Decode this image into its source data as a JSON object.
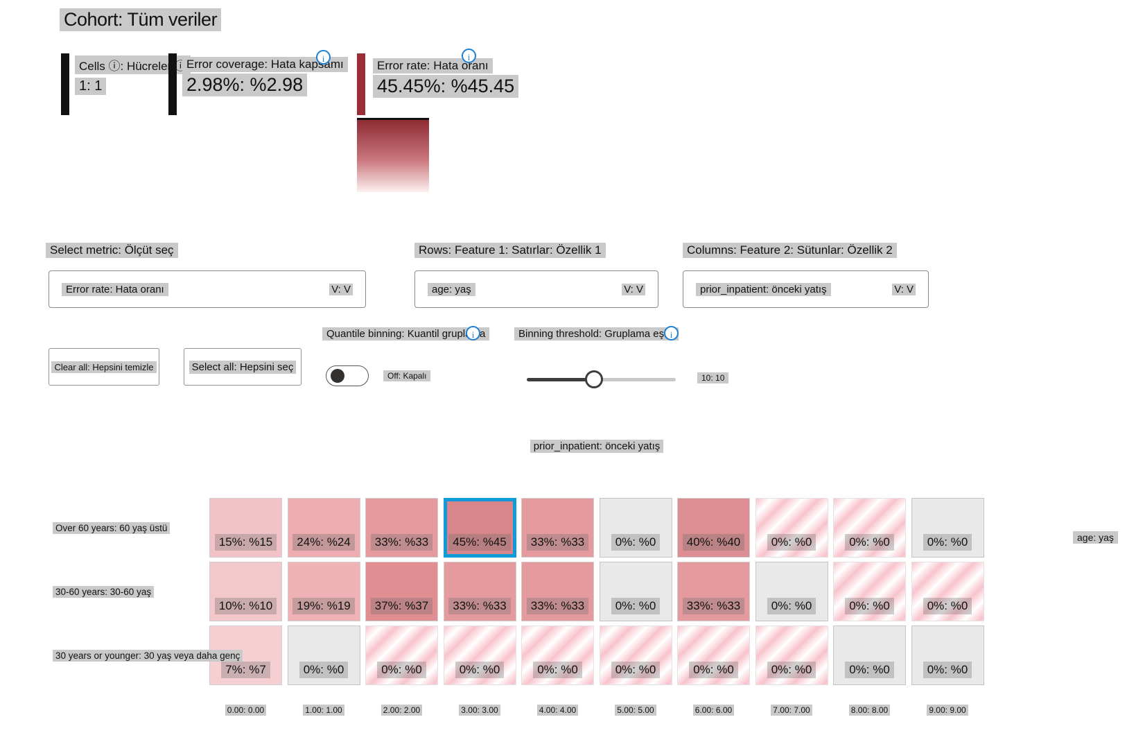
{
  "title": "Cohort: Tüm veriler",
  "stats": {
    "cells": {
      "label": "Cells ⓘ: Hücreler ⓘ",
      "value": "1: 1"
    },
    "error_coverage": {
      "label": "Error coverage: Hata kapsamı",
      "value": "2.98%: %2.98"
    },
    "error_rate": {
      "label": "Error rate: Hata oranı",
      "value": "45.45%: %45.45"
    }
  },
  "controls": {
    "metric_label": "Select metric: Ölçüt seç",
    "metric_value": "Error rate: Hata oranı",
    "rows_label": "Rows: Feature 1: Satırlar: Özellik 1",
    "rows_value": "age: yaş",
    "columns_label": "Columns: Feature 2: Sütunlar: Özellik 2",
    "columns_value": "prior_inpatient: önceki yatış",
    "dropdown_chevron": "V: V",
    "clear_all": "Clear all: Hepsini temizle",
    "select_all": "Select all: Hepsini seç",
    "quantile_label": "Quantile binning: Kuantil gruplama",
    "quantile_state": "Off: Kapalı",
    "threshold_label": "Binning threshold: Gruplama eşiği",
    "threshold_value": "10: 10",
    "threshold_percent": 45,
    "info_glyph": "i"
  },
  "colors": {
    "info_blue": "#1b7fd6",
    "selection_blue": "#0f9bd7",
    "error_red": "#9a2d36",
    "highlight_gray": "#c9c9c9",
    "legend_top": "#8e2b33",
    "legend_bottom": "#fdf0f0"
  },
  "chart_data": {
    "type": "heatmap",
    "title": "prior_inpatient: önceki yatış",
    "row_axis_label": "age: yaş",
    "columns": [
      "0.00: 0.00",
      "1.00: 1.00",
      "2.00: 2.00",
      "3.00: 3.00",
      "4.00: 4.00",
      "5.00: 5.00",
      "6.00: 6.00",
      "7.00: 7.00",
      "8.00: 8.00",
      "9.00: 9.00"
    ],
    "rows": [
      "Over 60 years: 60 yaş üstü",
      "30-60 years: 30-60 yaş",
      "30 years or younger: 30 yaş veya daha genç"
    ],
    "selected": {
      "row": 0,
      "col": 3
    },
    "legend": {
      "metric": "Error rate: Hata oranı",
      "max_label": "45.45%: %45.45"
    },
    "cells": [
      [
        {
          "label": "15%: %15",
          "value": 15,
          "fill": "#f2c3c6"
        },
        {
          "label": "24%: %24",
          "value": 24,
          "fill": "#ecacb0"
        },
        {
          "label": "33%: %33",
          "value": 33,
          "fill": "#e59a9e"
        },
        {
          "label": "45%: %45",
          "value": 45,
          "fill": "#d9868b"
        },
        {
          "label": "33%: %33",
          "value": 33,
          "fill": "#e59a9e"
        },
        {
          "label": "0%: %0",
          "value": 0,
          "fill": "gray"
        },
        {
          "label": "40%: %40",
          "value": 40,
          "fill": "#dd8e92"
        },
        {
          "label": "0%: %0",
          "value": 0,
          "fill": "striped"
        },
        {
          "label": "0%: %0",
          "value": 0,
          "fill": "striped"
        },
        {
          "label": "0%: %0",
          "value": 0,
          "fill": "gray"
        }
      ],
      [
        {
          "label": "10%: %10",
          "value": 10,
          "fill": "#f3c8cb"
        },
        {
          "label": "19%: %19",
          "value": 19,
          "fill": "#efb3b6"
        },
        {
          "label": "37%: %37",
          "value": 37,
          "fill": "#e08e92"
        },
        {
          "label": "33%: %33",
          "value": 33,
          "fill": "#e59a9e"
        },
        {
          "label": "33%: %33",
          "value": 33,
          "fill": "#e59a9e"
        },
        {
          "label": "0%: %0",
          "value": 0,
          "fill": "gray"
        },
        {
          "label": "33%: %33",
          "value": 33,
          "fill": "#e59a9e"
        },
        {
          "label": "0%: %0",
          "value": 0,
          "fill": "gray"
        },
        {
          "label": "0%: %0",
          "value": 0,
          "fill": "striped"
        },
        {
          "label": "0%: %0",
          "value": 0,
          "fill": "striped"
        }
      ],
      [
        {
          "label": "7%: %7",
          "value": 7,
          "fill": "#f5cfd2"
        },
        {
          "label": "0%: %0",
          "value": 0,
          "fill": "gray"
        },
        {
          "label": "0%: %0",
          "value": 0,
          "fill": "striped"
        },
        {
          "label": "0%: %0",
          "value": 0,
          "fill": "striped"
        },
        {
          "label": "0%: %0",
          "value": 0,
          "fill": "striped"
        },
        {
          "label": "0%: %0",
          "value": 0,
          "fill": "striped"
        },
        {
          "label": "0%: %0",
          "value": 0,
          "fill": "striped"
        },
        {
          "label": "0%: %0",
          "value": 0,
          "fill": "striped"
        },
        {
          "label": "0%: %0",
          "value": 0,
          "fill": "gray"
        },
        {
          "label": "0%: %0",
          "value": 0,
          "fill": "gray"
        }
      ]
    ]
  }
}
